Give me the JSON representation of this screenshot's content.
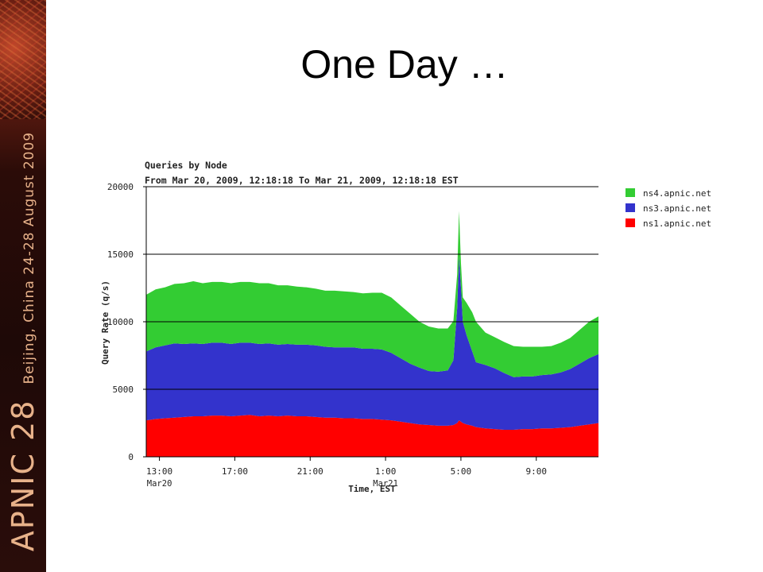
{
  "slide": {
    "title": "One Day …",
    "banner": {
      "event": "APNIC 28",
      "location": "Beijing, China  24-28 August 2009"
    }
  },
  "colors": {
    "ns4": "#33cc33",
    "ns3": "#3333cc",
    "ns1": "#ff0000",
    "grid": "#000000",
    "banner": "#3a0f0a"
  },
  "chart_data": {
    "type": "area",
    "stacked": true,
    "title": "Queries by Node",
    "subtitle": "From Mar 20, 2009, 12:18:18 To Mar 21, 2009, 12:18:18 EST",
    "xlabel": "Time, EST",
    "ylabel": "Query Rate (q/s)",
    "ylim": [
      0,
      20000
    ],
    "y_ticks": [
      "0",
      "5000",
      "10000",
      "15000",
      "20000"
    ],
    "x_ticks": [
      {
        "label": "13:00",
        "sub": "Mar20",
        "t": 0.7
      },
      {
        "label": "17:00",
        "sub": "",
        "t": 4.7
      },
      {
        "label": "21:00",
        "sub": "",
        "t": 8.7
      },
      {
        "label": "1:00",
        "sub": "Mar21",
        "t": 12.7
      },
      {
        "label": "5:00",
        "sub": "",
        "t": 16.7
      },
      {
        "label": "9:00",
        "sub": "",
        "t": 20.7
      }
    ],
    "x": [
      0,
      0.5,
      1,
      1.5,
      2,
      2.5,
      3,
      3.5,
      4,
      4.5,
      5,
      5.5,
      6,
      6.5,
      7,
      7.5,
      8,
      8.5,
      9,
      9.5,
      10,
      10.5,
      11,
      11.5,
      12,
      12.5,
      13,
      13.5,
      14,
      14.5,
      15,
      15.5,
      16,
      16.3,
      16.5,
      16.6,
      16.7,
      16.8,
      17,
      17.3,
      17.5,
      18,
      18.5,
      19,
      19.5,
      20,
      20.5,
      21,
      21.5,
      22,
      22.5,
      23,
      23.5,
      24
    ],
    "legend": [
      "ns4.apnic.net",
      "ns3.apnic.net",
      "ns1.apnic.net"
    ],
    "legend_position": "right",
    "grid": true,
    "series": [
      {
        "name": "ns1.apnic.net",
        "values": [
          2700,
          2800,
          2850,
          2900,
          2950,
          3000,
          3000,
          3050,
          3050,
          3000,
          3050,
          3100,
          3000,
          3050,
          3000,
          3050,
          3000,
          3000,
          2950,
          2900,
          2900,
          2850,
          2850,
          2800,
          2800,
          2750,
          2700,
          2600,
          2500,
          2400,
          2350,
          2300,
          2300,
          2350,
          2500,
          2700,
          2600,
          2500,
          2400,
          2300,
          2200,
          2100,
          2050,
          2000,
          2000,
          2050,
          2050,
          2100,
          2100,
          2150,
          2200,
          2300,
          2400,
          2500
        ]
      },
      {
        "name": "ns3.apnic.net",
        "values": [
          5100,
          5300,
          5400,
          5500,
          5400,
          5400,
          5350,
          5400,
          5400,
          5350,
          5400,
          5350,
          5350,
          5350,
          5300,
          5300,
          5300,
          5300,
          5300,
          5250,
          5200,
          5250,
          5250,
          5200,
          5200,
          5200,
          5000,
          4700,
          4400,
          4200,
          4000,
          4000,
          4100,
          4800,
          8500,
          12200,
          10000,
          7500,
          6600,
          5500,
          4800,
          4700,
          4500,
          4200,
          3900,
          3900,
          3900,
          3950,
          4000,
          4100,
          4300,
          4600,
          4900,
          5100
        ]
      },
      {
        "name": "ns4.apnic.net",
        "values": [
          4200,
          4300,
          4300,
          4400,
          4500,
          4600,
          4500,
          4500,
          4500,
          4500,
          4500,
          4500,
          4500,
          4450,
          4400,
          4350,
          4300,
          4250,
          4200,
          4150,
          4200,
          4150,
          4100,
          4100,
          4150,
          4200,
          4100,
          3900,
          3700,
          3400,
          3300,
          3200,
          3100,
          2900,
          2500,
          3300,
          1800,
          1800,
          2400,
          2900,
          3000,
          2400,
          2300,
          2300,
          2300,
          2200,
          2200,
          2100,
          2100,
          2200,
          2300,
          2500,
          2700,
          2800
        ]
      }
    ]
  }
}
